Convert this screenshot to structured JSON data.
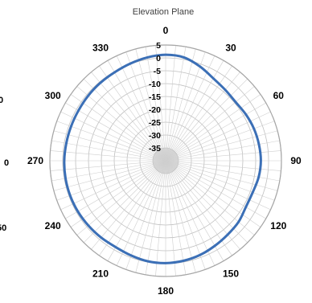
{
  "chart_data": {
    "type": "line",
    "subtype": "polar",
    "title": "Elevation Plane",
    "angular_ticks": [
      "0",
      "30",
      "60",
      "90",
      "120",
      "150",
      "180",
      "210",
      "240",
      "270",
      "300",
      "330"
    ],
    "radial_ticks": [
      "5",
      "0",
      "-5",
      "-10",
      "-15",
      "-20",
      "-25",
      "-30",
      "-35"
    ],
    "rlim": [
      -40,
      5
    ],
    "grid": true,
    "series_color": "#3B6FB6",
    "series": [
      {
        "theta": [
          0,
          10,
          20,
          30,
          40,
          50,
          60,
          70,
          80,
          90,
          100,
          110,
          120,
          130,
          140,
          150,
          160,
          170,
          180,
          190,
          200,
          210,
          220,
          230,
          240,
          250,
          260,
          270,
          280,
          290,
          300,
          310,
          320,
          330,
          340,
          350
        ],
        "r": [
          1.2,
          0.8,
          -1.0,
          -3.0,
          -4.0,
          -4.5,
          -4.0,
          -3.5,
          -3.2,
          -3.0,
          -3.3,
          -4.0,
          -4.0,
          -3.0,
          -2.5,
          -1.8,
          -1.0,
          -0.5,
          -0.2,
          -0.3,
          -0.8,
          -1.2,
          -1.0,
          -0.8,
          -0.6,
          -0.5,
          -0.5,
          -0.6,
          -0.8,
          -0.9,
          -0.9,
          -0.7,
          -0.5,
          -0.3,
          0.2,
          0.8
        ]
      }
    ]
  },
  "side_labels": {
    "left_top": "0",
    "left_mid": "0",
    "left_bottom": "50"
  }
}
